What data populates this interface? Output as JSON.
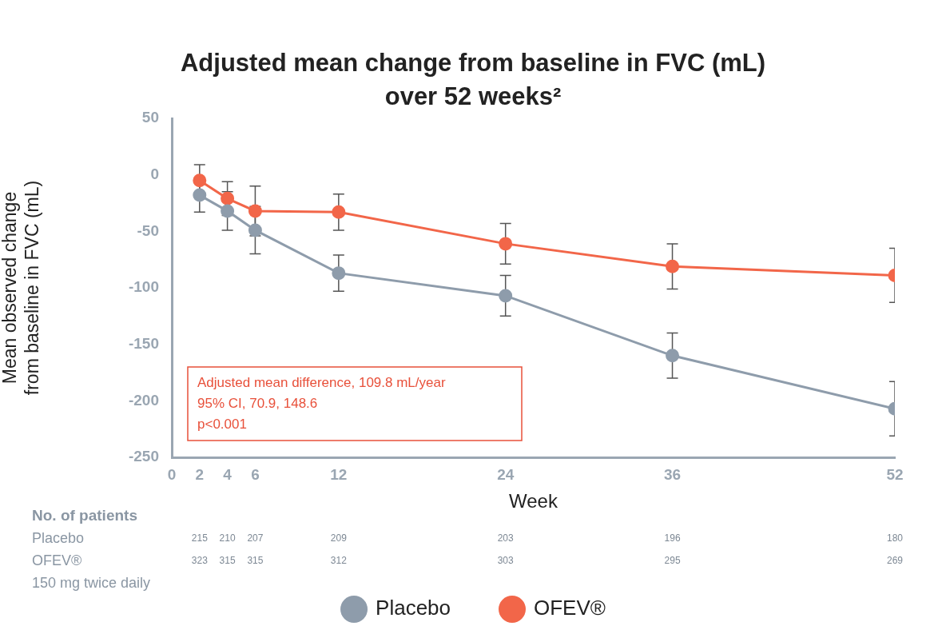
{
  "chart_data": {
    "type": "line",
    "title": [
      "Adjusted mean change from baseline in FVC (mL)",
      "over 52 weeks²"
    ],
    "x_label": "Week",
    "y_label": [
      "Mean observed change",
      "from baseline in FVC (mL)"
    ],
    "x": [
      2,
      4,
      6,
      12,
      24,
      36,
      52
    ],
    "xlim": [
      0,
      52
    ],
    "xticks": [
      0,
      2,
      4,
      6,
      12,
      24,
      36,
      52
    ],
    "ylim": [
      -250,
      50
    ],
    "yticks": [
      -250,
      -200,
      -150,
      -100,
      -50,
      0,
      50
    ],
    "grid": false,
    "legend": "bottom",
    "marker": "circle",
    "series": [
      {
        "name": "Placebo",
        "color": "#8e9cab",
        "values": [
          -18,
          -32,
          -49,
          -87,
          -107,
          -160,
          -207
        ],
        "errors": [
          15,
          17,
          21,
          16,
          18,
          20,
          24
        ]
      },
      {
        "name": "OFEV®",
        "color": "#f26649",
        "values": [
          -5,
          -21,
          -32,
          -33,
          -61,
          -81,
          -89
        ],
        "errors": [
          14,
          15,
          22,
          16,
          18,
          20,
          24
        ]
      }
    ],
    "annotation": [
      "Adjusted mean difference, 109.8 mL/year",
      "95% CI, 70.9, 148.6",
      "p<0.001"
    ],
    "patients": {
      "title": "No. of patients",
      "rows": [
        {
          "label": [
            "Placebo"
          ],
          "values": [
            215,
            210,
            207,
            209,
            203,
            196,
            180
          ]
        },
        {
          "label": [
            "OFEV®",
            "150 mg twice daily"
          ],
          "values": [
            323,
            315,
            315,
            312,
            303,
            295,
            269
          ]
        }
      ]
    }
  }
}
